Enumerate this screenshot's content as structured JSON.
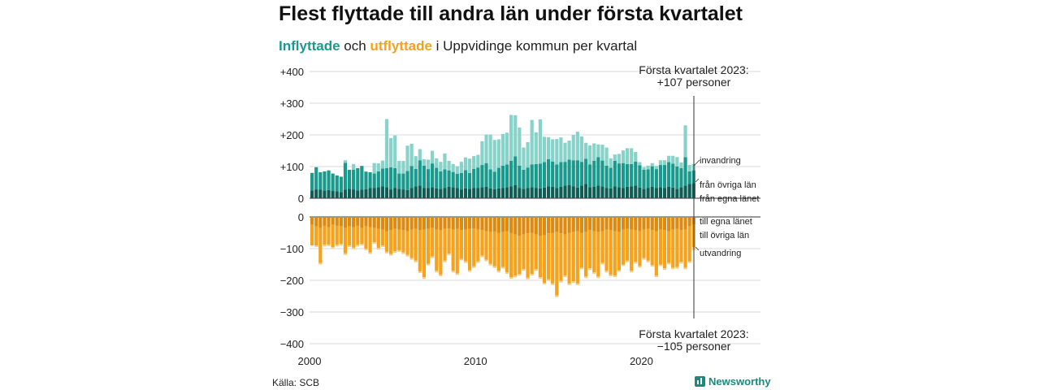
{
  "title": "Flest flyttade till andra län under första kvartalet",
  "subtitle": {
    "part1": "Inflyttade",
    "part2": " och ",
    "part3": "utflyttade",
    "part4": " i Uppvidinge kommun per kvartal"
  },
  "source": "Källa: SCB",
  "brand": "Newsworthy",
  "annotations": {
    "top_line1": "Första kvartalet 2023:",
    "top_line2": "+107 personer",
    "bottom_line1": "Första kvartalet 2023:",
    "bottom_line2": "−105 personer"
  },
  "labels": {
    "in_invandring": "invandring",
    "in_ovriga": "från övriga län",
    "in_egna": "från egna länet",
    "out_egna": "till egna länet",
    "out_ovriga": "till övriga län",
    "out_utvandring": "utvandring"
  },
  "colors": {
    "in_egna": "#0f5e55",
    "in_ovriga": "#1a9a8c",
    "in_invandring": "#88d3c9",
    "out_egna": "#dd8a10",
    "out_ovriga": "#f5a31d",
    "out_utvandring": "#f8cc85"
  },
  "chart_data": {
    "type": "bar",
    "stacked": true,
    "x_start": "2000 Q1",
    "x_end": "2023 Q1",
    "periodicity": "quarterly",
    "x_ticks": [
      "2000",
      "2010",
      "2020"
    ],
    "y_ticks_top": [
      "+400",
      "+300",
      "+200",
      "+100",
      "0"
    ],
    "y_ticks_bottom": [
      "0",
      "−100",
      "−200",
      "−300",
      "−400"
    ],
    "ylim_in": [
      0,
      400
    ],
    "ylim_out": [
      -400,
      0
    ],
    "grid": true,
    "series_in": [
      {
        "name": "från egna länet",
        "values": [
          25,
          28,
          27,
          25,
          26,
          23,
          22,
          20,
          27,
          30,
          28,
          25,
          27,
          29,
          32,
          33,
          35,
          38,
          35,
          28,
          33,
          30,
          28,
          26,
          32,
          38,
          40,
          33,
          32,
          35,
          31,
          30,
          33,
          36,
          35,
          32,
          28,
          31,
          30,
          33,
          32,
          35,
          36,
          31,
          29,
          31,
          33,
          35,
          38,
          42,
          33,
          30,
          32,
          35,
          33,
          31,
          34,
          38,
          36,
          32,
          36,
          40,
          42,
          38,
          34,
          40,
          45,
          35,
          36,
          40,
          37,
          33,
          31,
          38,
          35,
          33,
          36,
          38,
          40,
          34,
          30,
          33,
          36,
          32,
          35,
          33,
          36,
          34,
          30,
          35,
          40,
          45,
          48
        ]
      },
      {
        "name": "från övriga län",
        "values": [
          55,
          70,
          55,
          60,
          62,
          55,
          50,
          48,
          85,
          60,
          62,
          70,
          75,
          55,
          50,
          45,
          50,
          56,
          60,
          70,
          62,
          48,
          50,
          60,
          70,
          55,
          80,
          70,
          60,
          75,
          65,
          55,
          58,
          52,
          48,
          45,
          52,
          58,
          50,
          60,
          65,
          70,
          75,
          60,
          55,
          65,
          70,
          72,
          80,
          90,
          70,
          60,
          65,
          72,
          75,
          78,
          80,
          85,
          80,
          75,
          78,
          75,
          80,
          82,
          86,
          75,
          80,
          72,
          82,
          90,
          82,
          70,
          65,
          80,
          75,
          78,
          72,
          70,
          76,
          70,
          60,
          58,
          65,
          60,
          70,
          72,
          78,
          75,
          70,
          60,
          90,
          40,
          40
        ]
      },
      {
        "name": "invandring",
        "values": [
          0,
          0,
          0,
          0,
          0,
          0,
          0,
          0,
          8,
          0,
          18,
          0,
          0,
          0,
          0,
          33,
          25,
          25,
          155,
          92,
          103,
          40,
          40,
          80,
          70,
          40,
          35,
          20,
          30,
          40,
          30,
          30,
          50,
          30,
          25,
          24,
          35,
          40,
          45,
          40,
          40,
          75,
          90,
          110,
          100,
          90,
          100,
          100,
          145,
          130,
          120,
          70,
          80,
          140,
          100,
          140,
          80,
          70,
          70,
          80,
          78,
          60,
          60,
          80,
          90,
          80,
          50,
          60,
          55,
          40,
          50,
          57,
          30,
          20,
          30,
          40,
          50,
          50,
          30,
          10,
          8,
          12,
          10,
          10,
          15,
          15,
          20,
          25,
          30,
          18,
          100,
          20,
          20
        ]
      }
    ],
    "series_out": [
      {
        "name": "till egna länet",
        "values": [
          -25,
          -30,
          -35,
          -28,
          -32,
          -25,
          -28,
          -30,
          -35,
          -30,
          -32,
          -28,
          -35,
          -30,
          -32,
          -35,
          -38,
          -40,
          -45,
          -42,
          -38,
          -40,
          -42,
          -45,
          -40,
          -38,
          -42,
          -40,
          -38,
          -35,
          -40,
          -42,
          -38,
          -36,
          -40,
          -38,
          -42,
          -40,
          -38,
          -36,
          -40,
          -42,
          -45,
          -48,
          -46,
          -50,
          -48,
          -45,
          -50,
          -55,
          -60,
          -55,
          -52,
          -50,
          -55,
          -60,
          -58,
          -52,
          -50,
          -48,
          -52,
          -55,
          -50,
          -48,
          -45,
          -50,
          -48,
          -42,
          -45,
          -48,
          -45,
          -40,
          -42,
          -45,
          -48,
          -40,
          -38,
          -40,
          -42,
          -45,
          -40,
          -38,
          -42,
          -45,
          -40,
          -42,
          -45,
          -40,
          -38,
          -42,
          -40,
          -30,
          -25
        ]
      },
      {
        "name": "till övriga län",
        "values": [
          -65,
          -60,
          -110,
          -60,
          -55,
          -70,
          -60,
          -55,
          -80,
          -60,
          -65,
          -60,
          -50,
          -70,
          -80,
          -45,
          -60,
          -50,
          -65,
          -75,
          -70,
          -65,
          -70,
          -75,
          -90,
          -100,
          -130,
          -150,
          -110,
          -90,
          -130,
          -140,
          -100,
          -80,
          -130,
          -140,
          -90,
          -100,
          -130,
          -120,
          -100,
          -80,
          -90,
          -100,
          -110,
          -120,
          -110,
          -130,
          -140,
          -130,
          -120,
          -110,
          -140,
          -130,
          -110,
          -130,
          -150,
          -145,
          -160,
          -200,
          -150,
          -130,
          -160,
          -155,
          -165,
          -110,
          -140,
          -120,
          -130,
          -140,
          -100,
          -130,
          -140,
          -140,
          -120,
          -110,
          -100,
          -130,
          -100,
          -110,
          -90,
          -100,
          -110,
          -140,
          -110,
          -120,
          -100,
          -120,
          -120,
          -100,
          -120,
          -110,
          -70
        ]
      },
      {
        "name": "utvandring",
        "values": [
          0,
          -5,
          -5,
          -5,
          -5,
          -5,
          -5,
          -5,
          -5,
          -5,
          -5,
          -5,
          -5,
          -5,
          -5,
          -5,
          -5,
          -5,
          -5,
          -5,
          -5,
          -5,
          -5,
          -5,
          -5,
          -5,
          -5,
          -5,
          -5,
          -5,
          -5,
          -5,
          -5,
          -5,
          -5,
          -5,
          -5,
          -5,
          -5,
          -5,
          -5,
          -5,
          -5,
          -5,
          -5,
          -5,
          -5,
          -5,
          -5,
          -5,
          -5,
          -5,
          -5,
          -5,
          -5,
          -5,
          -5,
          -5,
          -5,
          -5,
          -5,
          -5,
          -5,
          -5,
          -5,
          -5,
          -5,
          -5,
          -5,
          -5,
          -5,
          -5,
          -5,
          -5,
          -5,
          -5,
          -5,
          -5,
          -5,
          -5,
          -5,
          -5,
          -5,
          -5,
          -5,
          -5,
          -5,
          -5,
          -5,
          -5,
          -5,
          -5,
          -10
        ]
      }
    ]
  }
}
